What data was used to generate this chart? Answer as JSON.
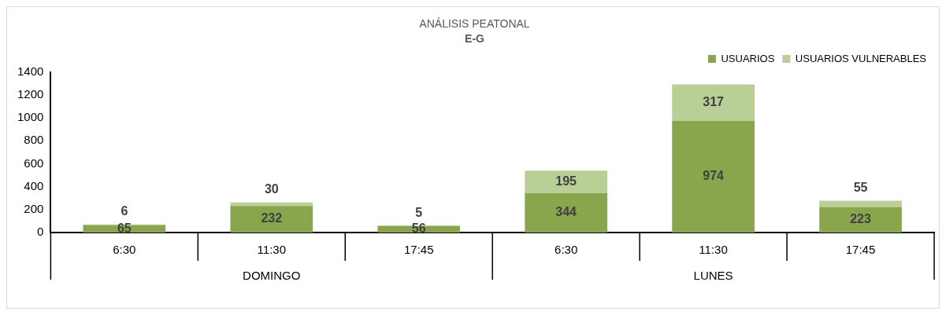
{
  "chart_data": {
    "type": "bar",
    "title": "ANÁLISIS PEATONAL",
    "subtitle": "E-G",
    "categories": [
      "6:30",
      "11:30",
      "17:45",
      "6:30",
      "11:30",
      "17:45"
    ],
    "series": [
      {
        "name": "USUARIOS",
        "color": "#8aa64d",
        "values": [
          65,
          232,
          56,
          344,
          974,
          223
        ]
      },
      {
        "name": "USUARIOS VULNERABLES",
        "color": "#b9cf96",
        "values": [
          6,
          30,
          5,
          195,
          317,
          55
        ]
      }
    ],
    "stacked": true,
    "ylim": [
      0,
      1400
    ],
    "yticks": [
      0,
      200,
      400,
      600,
      800,
      1000,
      1200,
      1400
    ],
    "legend": "top right",
    "data_labels": true,
    "annotations": [
      "DOMINGO",
      "LUNES"
    ]
  }
}
